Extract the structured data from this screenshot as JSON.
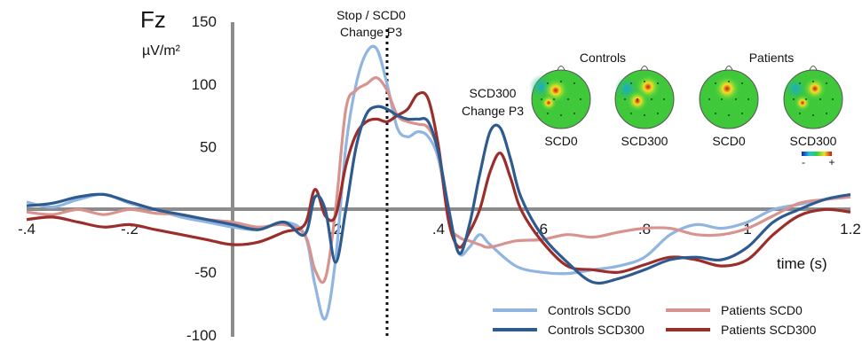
{
  "chart_data": {
    "type": "line",
    "title": "Fz",
    "ylabel": "µV/m²",
    "xlabel": "time (s)",
    "xlim": [
      -0.4,
      1.2
    ],
    "ylim": [
      -100,
      150
    ],
    "x_ticks": [
      -0.4,
      -0.2,
      0.2,
      0.4,
      0.6,
      0.8,
      1,
      1.2
    ],
    "x_tick_labels": [
      "-.4",
      "-.2",
      ".2",
      ".4",
      ".6",
      ".8",
      "1",
      "1.2"
    ],
    "y_ticks": [
      -100,
      -50,
      50,
      100,
      150
    ],
    "y_tick_labels": [
      "-100",
      "-50",
      "50",
      "100",
      "150"
    ],
    "vline_x": 0.3,
    "annotations": [
      {
        "text_lines": [
          "Stop / SCD0",
          "Change P3"
        ]
      },
      {
        "text_lines": [
          "SCD300",
          "Change P3"
        ]
      }
    ],
    "series": [
      {
        "name": "Controls SCD0",
        "color": "#8fb5e0",
        "x": [
          -0.4,
          -0.35,
          -0.3,
          -0.25,
          -0.2,
          -0.15,
          -0.1,
          -0.05,
          0,
          0.05,
          0.1,
          0.14,
          0.16,
          0.18,
          0.2,
          0.22,
          0.24,
          0.26,
          0.28,
          0.3,
          0.32,
          0.34,
          0.36,
          0.38,
          0.4,
          0.42,
          0.44,
          0.46,
          0.48,
          0.5,
          0.55,
          0.6,
          0.65,
          0.7,
          0.75,
          0.8,
          0.85,
          0.9,
          0.95,
          1.0,
          1.05,
          1.1,
          1.15,
          1.2
        ],
        "y": [
          6,
          2,
          8,
          12,
          5,
          0,
          -6,
          -10,
          -14,
          -16,
          -10,
          -20,
          -60,
          -87,
          -40,
          50,
          100,
          125,
          128,
          100,
          65,
          58,
          62,
          58,
          40,
          -5,
          -35,
          -30,
          -20,
          -28,
          -45,
          -50,
          -51,
          -48,
          -45,
          -38,
          -20,
          -12,
          -15,
          -10,
          0,
          4,
          8,
          10
        ]
      },
      {
        "name": "Controls SCD300",
        "color": "#2d5b90",
        "x": [
          -0.4,
          -0.35,
          -0.3,
          -0.25,
          -0.2,
          -0.15,
          -0.1,
          -0.05,
          0,
          0.05,
          0.1,
          0.14,
          0.16,
          0.18,
          0.2,
          0.22,
          0.24,
          0.26,
          0.28,
          0.3,
          0.32,
          0.34,
          0.36,
          0.38,
          0.4,
          0.42,
          0.44,
          0.46,
          0.48,
          0.5,
          0.52,
          0.54,
          0.56,
          0.6,
          0.65,
          0.7,
          0.75,
          0.8,
          0.85,
          0.9,
          0.95,
          1.0,
          1.05,
          1.1,
          1.15,
          1.2
        ],
        "y": [
          3,
          5,
          10,
          12,
          6,
          0,
          -4,
          -8,
          -12,
          -16,
          -10,
          -20,
          10,
          0,
          -42,
          0,
          50,
          76,
          82,
          80,
          75,
          72,
          72,
          70,
          45,
          0,
          -35,
          -12,
          28,
          62,
          65,
          40,
          10,
          -20,
          -42,
          -58,
          -55,
          -48,
          -40,
          -38,
          -40,
          -30,
          -10,
          0,
          8,
          12
        ]
      },
      {
        "name": "Patients SCD0",
        "color": "#d8938e",
        "x": [
          -0.4,
          -0.35,
          -0.3,
          -0.25,
          -0.2,
          -0.15,
          -0.1,
          -0.05,
          0,
          0.05,
          0.1,
          0.14,
          0.16,
          0.18,
          0.2,
          0.22,
          0.24,
          0.26,
          0.28,
          0.3,
          0.32,
          0.34,
          0.36,
          0.38,
          0.4,
          0.42,
          0.44,
          0.46,
          0.48,
          0.5,
          0.55,
          0.6,
          0.65,
          0.7,
          0.75,
          0.8,
          0.85,
          0.9,
          0.95,
          1.0,
          1.05,
          1.1,
          1.15,
          1.2
        ],
        "y": [
          -2,
          -4,
          0,
          -4,
          0,
          -3,
          -4,
          -8,
          -10,
          -14,
          -12,
          -20,
          -48,
          -55,
          0,
          80,
          95,
          100,
          105,
          95,
          75,
          70,
          68,
          65,
          45,
          -10,
          -22,
          -25,
          -28,
          -30,
          -25,
          -24,
          -20,
          -22,
          -18,
          -15,
          -15,
          -20,
          -20,
          -15,
          -5,
          5,
          8,
          10
        ]
      },
      {
        "name": "Patients SCD300",
        "color": "#9b2e2a",
        "x": [
          -0.4,
          -0.35,
          -0.3,
          -0.25,
          -0.2,
          -0.15,
          -0.1,
          -0.05,
          0,
          0.05,
          0.1,
          0.14,
          0.16,
          0.18,
          0.2,
          0.22,
          0.24,
          0.26,
          0.28,
          0.3,
          0.32,
          0.34,
          0.36,
          0.38,
          0.4,
          0.42,
          0.44,
          0.46,
          0.48,
          0.5,
          0.52,
          0.54,
          0.56,
          0.6,
          0.65,
          0.7,
          0.75,
          0.8,
          0.85,
          0.9,
          0.95,
          1.0,
          1.05,
          1.1,
          1.15,
          1.2
        ],
        "y": [
          -8,
          -6,
          -10,
          -14,
          -12,
          -16,
          -20,
          -24,
          -28,
          -26,
          -18,
          -12,
          16,
          -5,
          -5,
          35,
          60,
          70,
          72,
          70,
          75,
          80,
          92,
          88,
          50,
          -10,
          -30,
          -18,
          0,
          30,
          45,
          25,
          0,
          -25,
          -45,
          -48,
          -50,
          -44,
          -38,
          -40,
          -45,
          -40,
          -20,
          -5,
          0,
          -2
        ]
      }
    ]
  },
  "topomaps": {
    "groups": [
      {
        "label": "Controls",
        "maps": [
          {
            "label": "SCD0"
          },
          {
            "label": "SCD300"
          }
        ]
      },
      {
        "label": "Patients",
        "maps": [
          {
            "label": "SCD0"
          },
          {
            "label": "SCD300"
          }
        ]
      }
    ],
    "colorbar": {
      "min_label": "-",
      "max_label": "+"
    }
  }
}
